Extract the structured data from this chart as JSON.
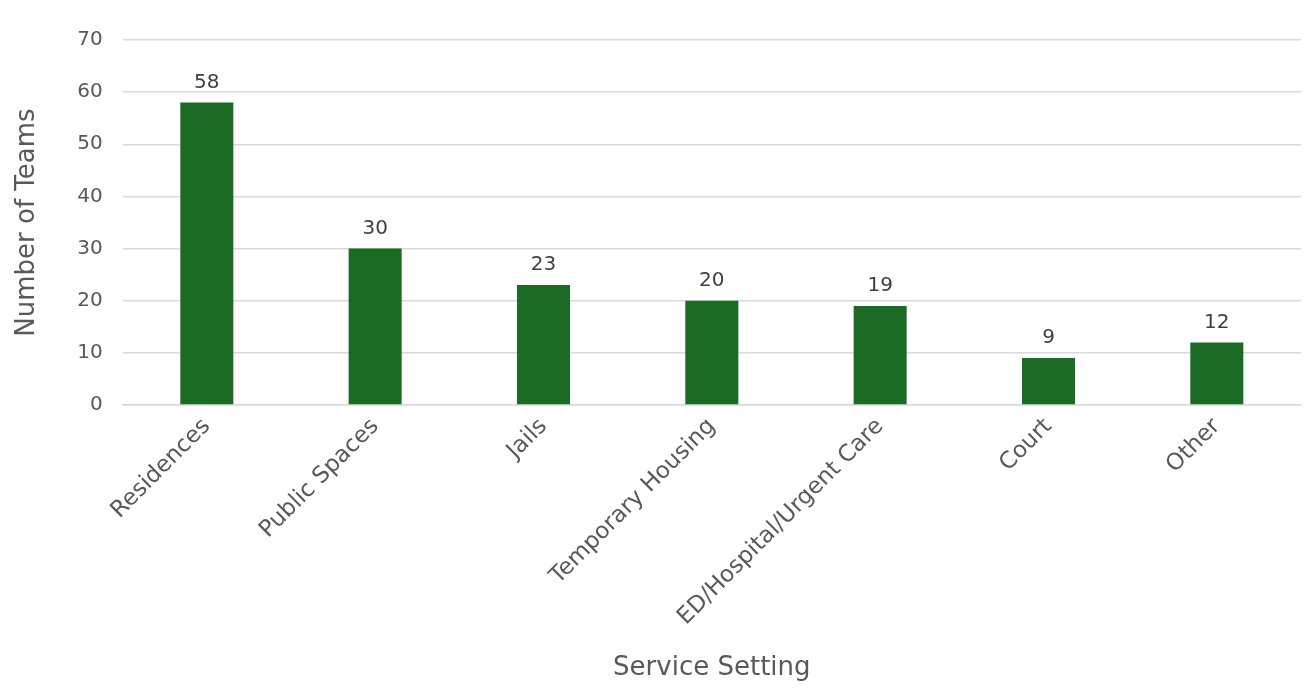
{
  "chart_data": {
    "type": "bar",
    "xlabel": "Service Setting",
    "ylabel": "Number of Teams",
    "categories": [
      "Residences",
      "Public Spaces",
      "Jails",
      "Temporary Housing",
      "ED/Hospital/Urgent Care",
      "Court",
      "Other"
    ],
    "values": [
      58,
      30,
      23,
      20,
      19,
      9,
      12
    ],
    "color": "#1b6b24",
    "ylim": [
      0,
      70
    ],
    "yticks": [
      0,
      10,
      20,
      30,
      40,
      50,
      60,
      70
    ],
    "grid": "y",
    "legend": false,
    "data_labels": true
  }
}
